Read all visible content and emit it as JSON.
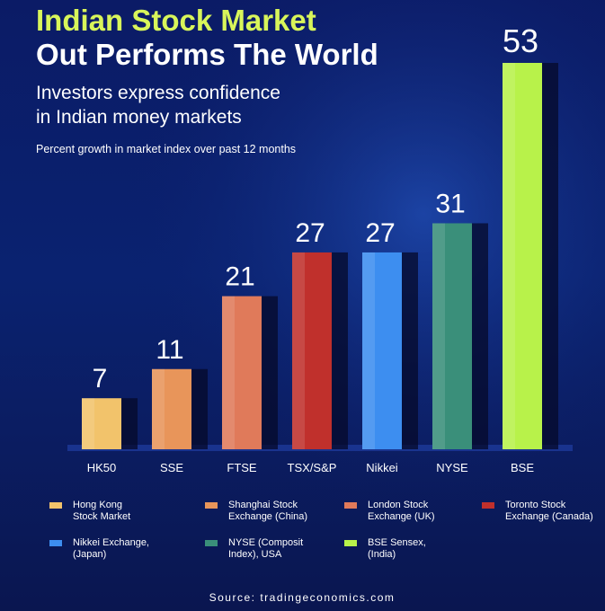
{
  "chart_data": {
    "type": "bar",
    "title": [
      "Indian Stock Market",
      "Out Performs The World"
    ],
    "subtitle": [
      "Investors express confidence",
      "in Indian money markets"
    ],
    "description": "Percent growth in market index over past 12 months",
    "categories": [
      "HK50",
      "SSE",
      "FTSE",
      "TSX/S&P",
      "Nikkei",
      "NYSE",
      "BSE"
    ],
    "values": [
      7,
      11,
      21,
      27,
      27,
      31,
      53
    ],
    "colors": [
      "#f2c36b",
      "#e8955a",
      "#e07a5a",
      "#c0302c",
      "#3d8ef0",
      "#3a8f7a",
      "#b8f24a"
    ],
    "legend": [
      {
        "name": "Hong Kong Stock Market",
        "color": "#f2c36b"
      },
      {
        "name": "Shanghai Stock Exchange (China)",
        "color": "#e8955a"
      },
      {
        "name": "London Stock Exchange (UK)",
        "color": "#e07a5a"
      },
      {
        "name": "Toronto Stock Exchange (Canada)",
        "color": "#c0302c"
      },
      {
        "name": "Nikkei Exchange, (Japan)",
        "color": "#3d8ef0"
      },
      {
        "name": "NYSE (Composit Index), USA",
        "color": "#3a8f7a"
      },
      {
        "name": "BSE Sensex, (India)",
        "color": "#b8f24a"
      }
    ],
    "source": "Source: tradingeconomics.com"
  }
}
